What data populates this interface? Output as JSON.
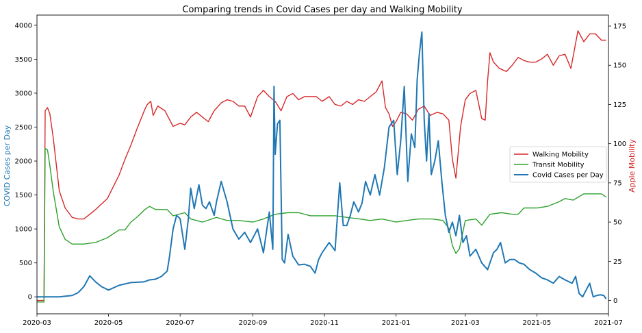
{
  "chart_data": {
    "type": "line",
    "title": "Comparing trends in Covid Cases per day and Walking Mobility",
    "ylabel_left": "COVID Cases per Day",
    "ylabel_right": "Apple Mobility",
    "xlim": [
      "2020-03-01",
      "2021-07-01"
    ],
    "ylim_left": [
      -250,
      4150
    ],
    "ylim_right": [
      -8.5,
      182
    ],
    "x_ticks": [
      "2020-03",
      "2020-05",
      "2020-07",
      "2020-09",
      "2020-11",
      "2021-01",
      "2021-03",
      "2021-05",
      "2021-07"
    ],
    "y_ticks_left": [
      0,
      500,
      1000,
      1500,
      2000,
      2500,
      3000,
      3500,
      4000
    ],
    "y_ticks_right": [
      0,
      25,
      50,
      75,
      100,
      125,
      150,
      175
    ],
    "legend_placement": "center-right",
    "colors": {
      "walking": "#d62728",
      "transit": "#2ca02c",
      "cases": "#1f77b4",
      "left_axis_label": "#1f77b4",
      "right_axis_label": "#d62728"
    },
    "series": [
      {
        "name": "Walking Mobility",
        "axis": "right",
        "x": [
          "2020-03-01",
          "2020-03-07",
          "2020-03-08",
          "2020-03-10",
          "2020-03-12",
          "2020-03-15",
          "2020-03-20",
          "2020-03-25",
          "2020-03-31",
          "2020-04-05",
          "2020-04-10",
          "2020-04-15",
          "2020-04-20",
          "2020-04-30",
          "2020-05-10",
          "2020-05-15",
          "2020-05-20",
          "2020-05-25",
          "2020-06-01",
          "2020-06-03",
          "2020-06-06",
          "2020-06-08",
          "2020-06-12",
          "2020-06-18",
          "2020-06-25",
          "2020-07-01",
          "2020-07-05",
          "2020-07-10",
          "2020-07-15",
          "2020-07-20",
          "2020-07-25",
          "2020-07-30",
          "2020-08-05",
          "2020-08-10",
          "2020-08-15",
          "2020-08-20",
          "2020-08-25",
          "2020-08-30",
          "2020-09-05",
          "2020-09-10",
          "2020-09-15",
          "2020-09-20",
          "2020-09-25",
          "2020-09-30",
          "2020-10-05",
          "2020-10-10",
          "2020-10-15",
          "2020-10-20",
          "2020-10-25",
          "2020-10-30",
          "2020-11-05",
          "2020-11-10",
          "2020-11-15",
          "2020-11-20",
          "2020-11-25",
          "2020-11-30",
          "2020-12-05",
          "2020-12-10",
          "2020-12-15",
          "2020-12-20",
          "2020-12-23",
          "2020-12-26",
          "2020-12-29",
          "2021-01-01",
          "2021-01-05",
          "2021-01-10",
          "2021-01-15",
          "2021-01-20",
          "2021-01-25",
          "2021-01-30",
          "2021-02-05",
          "2021-02-10",
          "2021-02-15",
          "2021-02-18",
          "2021-02-21",
          "2021-02-25",
          "2021-03-01",
          "2021-03-05",
          "2021-03-10",
          "2021-03-15",
          "2021-03-18",
          "2021-03-20",
          "2021-03-22",
          "2021-03-25",
          "2021-03-30",
          "2021-04-05",
          "2021-04-10",
          "2021-04-15",
          "2021-04-20",
          "2021-04-25",
          "2021-04-30",
          "2021-05-05",
          "2021-05-10",
          "2021-05-15",
          "2021-05-20",
          "2021-05-25",
          "2021-05-30",
          "2021-06-05",
          "2021-06-10",
          "2021-06-15",
          "2021-06-20",
          "2021-06-25",
          "2021-06-29"
        ],
        "y": [
          0,
          0,
          121,
          123,
          119,
          103,
          70,
          59,
          53,
          52,
          52,
          55,
          58,
          65,
          80,
          90,
          99,
          109,
          122,
          125,
          127,
          118,
          124,
          121,
          111,
          113,
          112,
          117,
          120,
          117,
          114,
          121,
          126,
          128,
          127,
          124,
          124,
          117,
          130,
          134,
          130,
          127,
          121,
          130,
          132,
          128,
          130,
          130,
          130,
          127,
          130,
          125,
          124,
          127,
          125,
          128,
          127,
          130,
          133,
          140,
          123,
          119,
          111,
          114,
          120,
          119,
          115,
          122,
          124,
          118,
          120,
          119,
          115,
          90,
          78,
          111,
          128,
          132,
          134,
          116,
          115,
          140,
          158,
          152,
          148,
          146,
          150,
          155,
          153,
          152,
          152,
          154,
          157,
          150,
          156,
          157,
          148,
          172,
          165,
          170,
          170,
          166,
          166
        ]
      },
      {
        "name": "Transit Mobility",
        "axis": "right",
        "x": [
          "2020-03-01",
          "2020-03-07",
          "2020-03-08",
          "2020-03-10",
          "2020-03-12",
          "2020-03-15",
          "2020-03-20",
          "2020-03-25",
          "2020-03-31",
          "2020-04-05",
          "2020-04-10",
          "2020-04-20",
          "2020-04-30",
          "2020-05-10",
          "2020-05-15",
          "2020-05-20",
          "2020-05-25",
          "2020-06-01",
          "2020-06-05",
          "2020-06-10",
          "2020-06-20",
          "2020-06-25",
          "2020-07-05",
          "2020-07-10",
          "2020-07-20",
          "2020-08-01",
          "2020-08-10",
          "2020-08-20",
          "2020-09-01",
          "2020-09-10",
          "2020-09-20",
          "2020-10-01",
          "2020-10-10",
          "2020-10-20",
          "2020-11-01",
          "2020-11-10",
          "2020-11-20",
          "2020-12-01",
          "2020-12-10",
          "2020-12-20",
          "2021-01-01",
          "2021-01-10",
          "2021-01-20",
          "2021-02-01",
          "2021-02-10",
          "2021-02-15",
          "2021-02-18",
          "2021-02-21",
          "2021-02-24",
          "2021-03-01",
          "2021-03-10",
          "2021-03-15",
          "2021-03-22",
          "2021-04-01",
          "2021-04-10",
          "2021-04-15",
          "2021-04-20",
          "2021-05-01",
          "2021-05-10",
          "2021-05-20",
          "2021-05-25",
          "2021-06-01",
          "2021-06-10",
          "2021-06-20",
          "2021-06-25",
          "2021-06-29"
        ],
        "y": [
          -1,
          -1,
          97,
          96,
          86,
          69,
          47,
          39,
          36,
          36,
          36,
          37,
          40,
          45,
          45,
          50,
          53,
          58,
          60,
          58,
          58,
          54,
          56,
          52,
          50,
          53,
          51,
          51,
          50,
          52,
          55,
          56,
          56,
          54,
          54,
          54,
          53,
          52,
          51,
          52,
          50,
          51,
          52,
          52,
          51,
          46,
          35,
          30,
          33,
          51,
          52,
          48,
          55,
          56,
          55,
          55,
          59,
          59,
          60,
          63,
          65,
          64,
          68,
          68,
          68,
          66
        ]
      },
      {
        "name": "Covid Cases per Day",
        "axis": "left",
        "x": [
          "2020-03-01",
          "2020-03-20",
          "2020-03-31",
          "2020-04-05",
          "2020-04-10",
          "2020-04-15",
          "2020-04-20",
          "2020-04-25",
          "2020-05-01",
          "2020-05-10",
          "2020-05-20",
          "2020-05-31",
          "2020-06-05",
          "2020-06-10",
          "2020-06-15",
          "2020-06-20",
          "2020-06-22",
          "2020-06-25",
          "2020-06-28",
          "2020-07-01",
          "2020-07-05",
          "2020-07-08",
          "2020-07-10",
          "2020-07-13",
          "2020-07-17",
          "2020-07-20",
          "2020-07-23",
          "2020-07-26",
          "2020-07-30",
          "2020-08-01",
          "2020-08-05",
          "2020-08-10",
          "2020-08-15",
          "2020-08-20",
          "2020-08-25",
          "2020-08-30",
          "2020-09-05",
          "2020-09-10",
          "2020-09-15",
          "2020-09-18",
          "2020-09-19",
          "2020-09-20",
          "2020-09-22",
          "2020-09-24",
          "2020-09-26",
          "2020-09-28",
          "2020-10-01",
          "2020-10-05",
          "2020-10-10",
          "2020-10-15",
          "2020-10-20",
          "2020-10-24",
          "2020-10-27",
          "2020-10-30",
          "2020-11-05",
          "2020-11-10",
          "2020-11-14",
          "2020-11-17",
          "2020-11-20",
          "2020-11-23",
          "2020-11-26",
          "2020-11-30",
          "2020-12-03",
          "2020-12-06",
          "2020-12-10",
          "2020-12-14",
          "2020-12-18",
          "2020-12-22",
          "2020-12-26",
          "2020-12-30",
          "2021-01-02",
          "2021-01-05",
          "2021-01-08",
          "2021-01-11",
          "2021-01-14",
          "2021-01-17",
          "2021-01-19",
          "2021-01-21",
          "2021-01-23",
          "2021-01-25",
          "2021-01-27",
          "2021-01-29",
          "2021-01-31",
          "2021-02-03",
          "2021-02-06",
          "2021-02-09",
          "2021-02-12",
          "2021-02-15",
          "2021-02-18",
          "2021-02-21",
          "2021-02-24",
          "2021-02-27",
          "2021-03-02",
          "2021-03-05",
          "2021-03-10",
          "2021-03-15",
          "2021-03-20",
          "2021-03-25",
          "2021-03-28",
          "2021-03-31",
          "2021-04-04",
          "2021-04-08",
          "2021-04-12",
          "2021-04-16",
          "2021-04-20",
          "2021-04-25",
          "2021-04-30",
          "2021-05-05",
          "2021-05-10",
          "2021-05-15",
          "2021-05-20",
          "2021-05-25",
          "2021-05-31",
          "2021-06-03",
          "2021-06-06",
          "2021-06-09",
          "2021-06-12",
          "2021-06-15",
          "2021-06-18",
          "2021-06-21",
          "2021-06-24",
          "2021-06-27",
          "2021-06-29"
        ],
        "y": [
          0,
          0,
          20,
          60,
          150,
          310,
          220,
          150,
          100,
          170,
          210,
          220,
          250,
          260,
          300,
          380,
          600,
          1000,
          1200,
          1150,
          700,
          1150,
          1600,
          1300,
          1650,
          1350,
          1300,
          1400,
          1200,
          1400,
          1700,
          1400,
          1000,
          850,
          950,
          800,
          1000,
          650,
          1250,
          700,
          3100,
          2100,
          2550,
          2600,
          550,
          500,
          920,
          600,
          470,
          480,
          450,
          350,
          550,
          650,
          800,
          680,
          1680,
          1050,
          1050,
          1200,
          1400,
          1250,
          1380,
          1700,
          1500,
          1800,
          1500,
          1900,
          2500,
          2600,
          1800,
          2300,
          3100,
          1700,
          2400,
          2200,
          3200,
          3600,
          3900,
          2600,
          2000,
          2700,
          1800,
          2000,
          2300,
          1700,
          1200,
          950,
          1100,
          900,
          1200,
          800,
          900,
          600,
          700,
          500,
          400,
          650,
          700,
          800,
          500,
          550,
          550,
          500,
          480,
          400,
          350,
          280,
          250,
          200,
          300,
          250,
          200,
          300,
          50,
          0,
          100,
          200,
          0,
          20,
          30,
          20,
          -30
        ]
      }
    ]
  }
}
